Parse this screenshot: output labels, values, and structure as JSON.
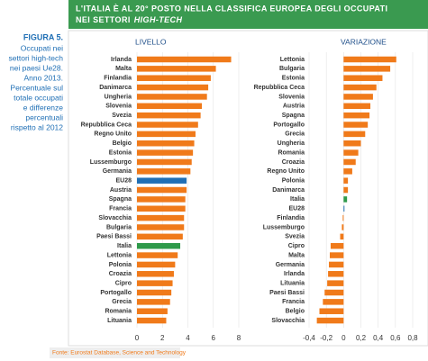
{
  "header": {
    "title_line1": "L'ITALIA È AL 20° POSTO NELLA CLASSIFICA EUROPEA DEGLI OCCUPATI",
    "title_line2": "NEI SETTORI",
    "title_italic": "HIGH-TECH"
  },
  "sidebar": {
    "figure": "FIGURA 5.",
    "caption": [
      "Occupati nei",
      "settori high-tech",
      "nei paesi Ue28.",
      "Anno 2013.",
      "Percentuale sul",
      "totale occupati",
      "e differenze",
      "percentuali",
      "rispetto al 2012"
    ]
  },
  "source": "Fonte: Eurostat Database, Science and Technology",
  "chart_data": [
    {
      "type": "hbar",
      "title": "LIVELLO",
      "categories": [
        "Irlanda",
        "Malta",
        "Finlandia",
        "Danimarca",
        "Ungheria",
        "Slovenia",
        "Svezia",
        "Repubblica Ceca",
        "Regno Unito",
        "Belgio",
        "Estonia",
        "Lussemburgo",
        "Germania",
        "EU28",
        "Austria",
        "Spagna",
        "Francia",
        "Slovacchia",
        "Bulgaria",
        "Paesi Bassi",
        "Italia",
        "Lettonia",
        "Polonia",
        "Croazia",
        "Cipro",
        "Portogallo",
        "Grecia",
        "Romania",
        "Lituania"
      ],
      "values": [
        7.4,
        6.2,
        5.8,
        5.6,
        5.5,
        5.1,
        5.0,
        4.8,
        4.6,
        4.5,
        4.4,
        4.3,
        4.2,
        3.9,
        3.9,
        3.8,
        3.8,
        3.7,
        3.7,
        3.6,
        3.4,
        3.2,
        3.0,
        2.9,
        2.8,
        2.7,
        2.6,
        2.4,
        2.3
      ],
      "colors": [
        "#f07a1a",
        "#f07a1a",
        "#f07a1a",
        "#f07a1a",
        "#f07a1a",
        "#f07a1a",
        "#f07a1a",
        "#f07a1a",
        "#f07a1a",
        "#f07a1a",
        "#f07a1a",
        "#f07a1a",
        "#f07a1a",
        "#1f6fb5",
        "#f07a1a",
        "#f07a1a",
        "#f07a1a",
        "#f07a1a",
        "#f07a1a",
        "#f07a1a",
        "#2e9a4a",
        "#f07a1a",
        "#f07a1a",
        "#f07a1a",
        "#f07a1a",
        "#f07a1a",
        "#f07a1a",
        "#f07a1a",
        "#f07a1a"
      ],
      "xlim": [
        0,
        8
      ],
      "xticks": [
        0,
        2,
        4,
        6,
        8
      ],
      "grid": true
    },
    {
      "type": "hbar",
      "title": "VARIAZIONE",
      "categories": [
        "Lettonia",
        "Bulgaria",
        "Estonia",
        "Repubblica Ceca",
        "Slovenia",
        "Austria",
        "Spagna",
        "Portogallo",
        "Grecia",
        "Ungheria",
        "Romania",
        "Croazia",
        "Regno Unito",
        "Polonia",
        "Danimarca",
        "Italia",
        "EU28",
        "Finlandia",
        "Lussemburgo",
        "Svezia",
        "Cipro",
        "Malta",
        "Germania",
        "Irlanda",
        "Lituania",
        "Paesi Bassi",
        "Francia",
        "Belgio",
        "Slovacchia"
      ],
      "values": [
        0.61,
        0.54,
        0.45,
        0.38,
        0.34,
        0.31,
        0.3,
        0.28,
        0.25,
        0.2,
        0.17,
        0.14,
        0.1,
        0.05,
        0.05,
        0.04,
        0.01,
        -0.01,
        -0.02,
        -0.04,
        -0.15,
        -0.16,
        -0.17,
        -0.18,
        -0.19,
        -0.22,
        -0.24,
        -0.28,
        -0.31
      ],
      "colors": [
        "#f07a1a",
        "#f07a1a",
        "#f07a1a",
        "#f07a1a",
        "#f07a1a",
        "#f07a1a",
        "#f07a1a",
        "#f07a1a",
        "#f07a1a",
        "#f07a1a",
        "#f07a1a",
        "#f07a1a",
        "#f07a1a",
        "#f07a1a",
        "#f07a1a",
        "#2e9a4a",
        "#1f6fb5",
        "#f07a1a",
        "#f07a1a",
        "#f07a1a",
        "#f07a1a",
        "#f07a1a",
        "#f07a1a",
        "#f07a1a",
        "#f07a1a",
        "#f07a1a",
        "#f07a1a",
        "#f07a1a",
        "#f07a1a"
      ],
      "xlim": [
        -0.4,
        0.8
      ],
      "xticks": [
        {
          "value": -0.4,
          "label": "-0,4"
        },
        {
          "value": -0.2,
          "label": "-0,2"
        },
        0,
        {
          "value": 0.2,
          "label": "0,2"
        },
        {
          "value": 0.4,
          "label": "0,4"
        },
        {
          "value": 0.6,
          "label": "0,6"
        },
        {
          "value": 0.8,
          "label": "0,8"
        }
      ],
      "grid": true
    }
  ]
}
